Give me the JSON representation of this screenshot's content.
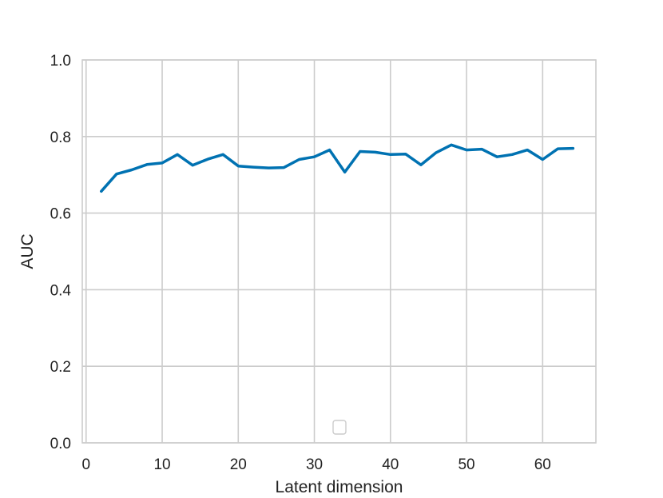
{
  "chart_data": {
    "type": "line",
    "title": "",
    "xlabel": "Latent dimension",
    "ylabel": "AUC",
    "xlim": [
      -0.5,
      67
    ],
    "ylim": [
      0.0,
      1.0
    ],
    "xticks": [
      0,
      10,
      20,
      30,
      40,
      50,
      60
    ],
    "xtick_labels": [
      "0",
      "10",
      "20",
      "30",
      "40",
      "50",
      "60"
    ],
    "yticks": [
      0.0,
      0.2,
      0.4,
      0.6,
      0.8,
      1.0
    ],
    "ytick_labels": [
      "0.0",
      "0.2",
      "0.4",
      "0.6",
      "0.8",
      "1.0"
    ],
    "grid": true,
    "legend": "bottom-center, empty",
    "series": [
      {
        "color": "#0072b2",
        "x": [
          2,
          4,
          6,
          8,
          10,
          12,
          14,
          16,
          18,
          20,
          22,
          24,
          26,
          28,
          30,
          32,
          34,
          36,
          38,
          40,
          42,
          44,
          46,
          48,
          50,
          52,
          54,
          56,
          58,
          60,
          62,
          64
        ],
        "y": [
          0.657,
          0.702,
          0.713,
          0.727,
          0.731,
          0.753,
          0.725,
          0.741,
          0.753,
          0.723,
          0.72,
          0.718,
          0.719,
          0.74,
          0.747,
          0.765,
          0.707,
          0.761,
          0.759,
          0.753,
          0.754,
          0.726,
          0.758,
          0.778,
          0.765,
          0.767,
          0.747,
          0.753,
          0.765,
          0.74,
          0.768,
          0.769
        ]
      }
    ]
  }
}
